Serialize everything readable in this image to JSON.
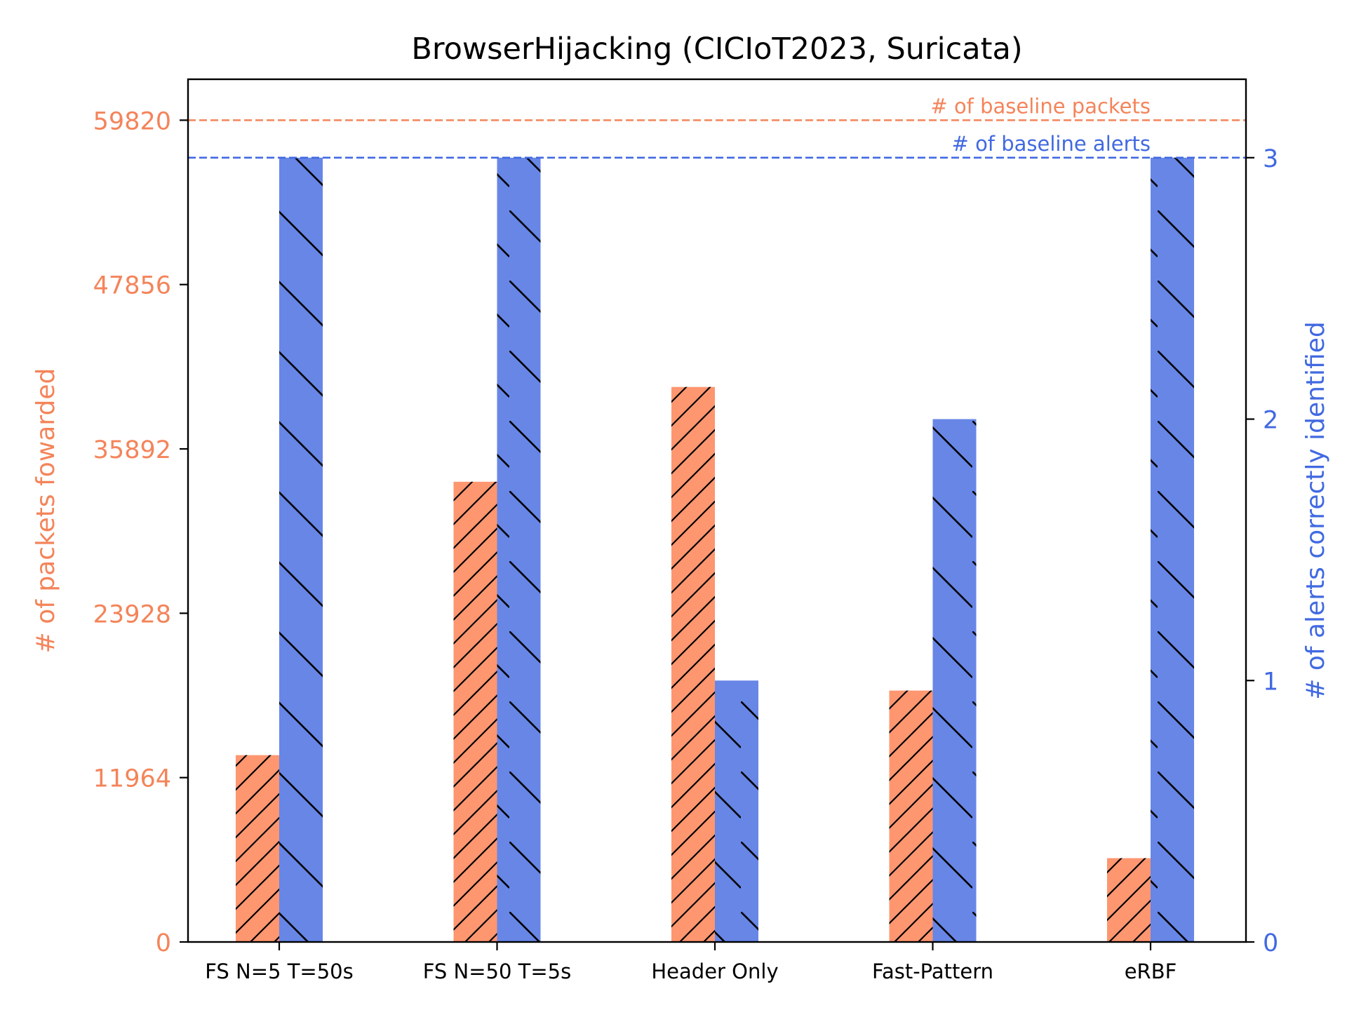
{
  "chart_data": {
    "type": "bar",
    "title": "BrowserHijacking (CICIoT2023, Suricata)",
    "categories": [
      "FS N=5 T=50s",
      "FS N=50 T=5s",
      "Header Only",
      "Fast-Pattern",
      "eRBF"
    ],
    "left_axis": {
      "label": "# of packets fowarded",
      "ylim": [
        0,
        62800
      ],
      "ticks": [
        0,
        11964,
        23928,
        35892,
        47856,
        59820
      ],
      "color": "#f4845a"
    },
    "right_axis": {
      "label": "# of alerts correctly identified",
      "ylim": [
        0,
        3.3
      ],
      "ticks": [
        0,
        1,
        2,
        3
      ],
      "color": "#4169e1"
    },
    "series": [
      {
        "axis": "left",
        "values": [
          13600,
          33500,
          40400,
          18300,
          6100
        ],
        "color": "#fe9670",
        "hatch": "forward"
      },
      {
        "axis": "right",
        "values": [
          3,
          3,
          1,
          2,
          3
        ],
        "color": "#6786e6",
        "hatch": "back"
      }
    ],
    "reference_lines": [
      {
        "axis": "left",
        "value": 59820,
        "label": "# of baseline packets",
        "color": "#f4845a"
      },
      {
        "axis": "right",
        "value": 3,
        "label": "# of baseline alerts",
        "color": "#4169e1"
      }
    ],
    "grid": false
  }
}
